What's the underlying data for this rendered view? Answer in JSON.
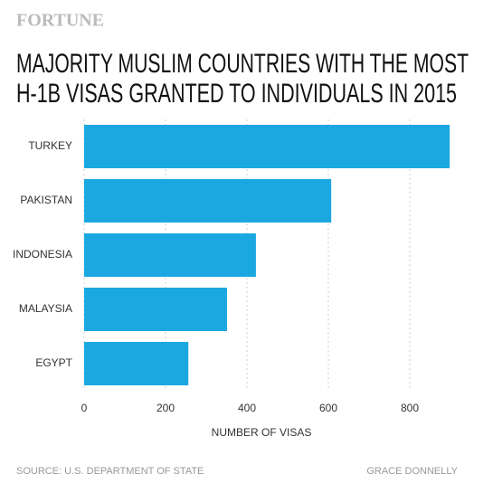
{
  "brand": "FORTUNE",
  "chart_data": {
    "type": "hbar",
    "title": [
      "MAJORITY MUSLIM COUNTRIES WITH THE MOST",
      "H-1B VISAS GRANTED TO INDIVIDUALS IN 2015"
    ],
    "categories": [
      "TURKEY",
      "PAKISTAN",
      "INDONESIA",
      "MALAYSIA",
      "EGYPT"
    ],
    "values": [
      898,
      607,
      422,
      351,
      256
    ],
    "color": "#1ba8e0",
    "xlabel": "NUMBER OF VISAS",
    "xlim": [
      0,
      900
    ],
    "xticks": [
      0,
      200,
      400,
      600,
      800
    ],
    "grid": true
  },
  "source": "SOURCE: U.S. DEPARTMENT OF STATE",
  "author": "GRACE DONNELLY"
}
